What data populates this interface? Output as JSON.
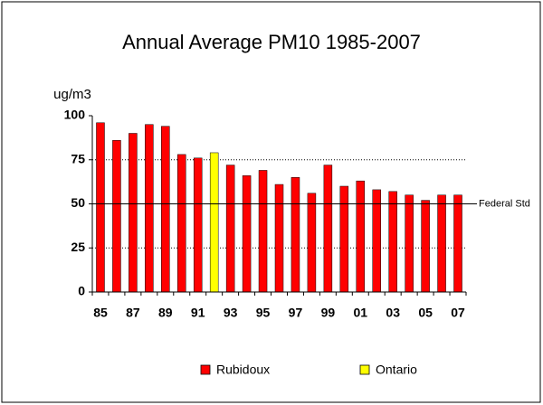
{
  "chart_data": {
    "type": "bar",
    "title": "Annual Average PM10 1985-2007",
    "y_label": "ug/m3",
    "categories": [
      "85",
      null,
      "87",
      null,
      "89",
      null,
      "91",
      null,
      "93",
      null,
      "95",
      null,
      "97",
      null,
      "99",
      null,
      "01",
      null,
      "03",
      null,
      "05",
      null,
      "07"
    ],
    "series": [
      {
        "name": "Rubidoux",
        "color": "#ff0000",
        "values": [
          96,
          86,
          90,
          95,
          94,
          78,
          76,
          null,
          72,
          66,
          69,
          61,
          65,
          56,
          72,
          60,
          63,
          58,
          57,
          55,
          52,
          55,
          55
        ]
      },
      {
        "name": "Ontario",
        "color": "#ffff00",
        "values": [
          null,
          null,
          null,
          null,
          null,
          null,
          null,
          79,
          null,
          null,
          null,
          null,
          null,
          null,
          null,
          null,
          null,
          null,
          null,
          null,
          null,
          null,
          null
        ]
      }
    ],
    "ylim": [
      0,
      100
    ],
    "yticks": [
      0,
      25,
      50,
      75,
      100
    ],
    "grid": true,
    "reference_line": {
      "label": "Federal Std",
      "value": 50
    }
  }
}
